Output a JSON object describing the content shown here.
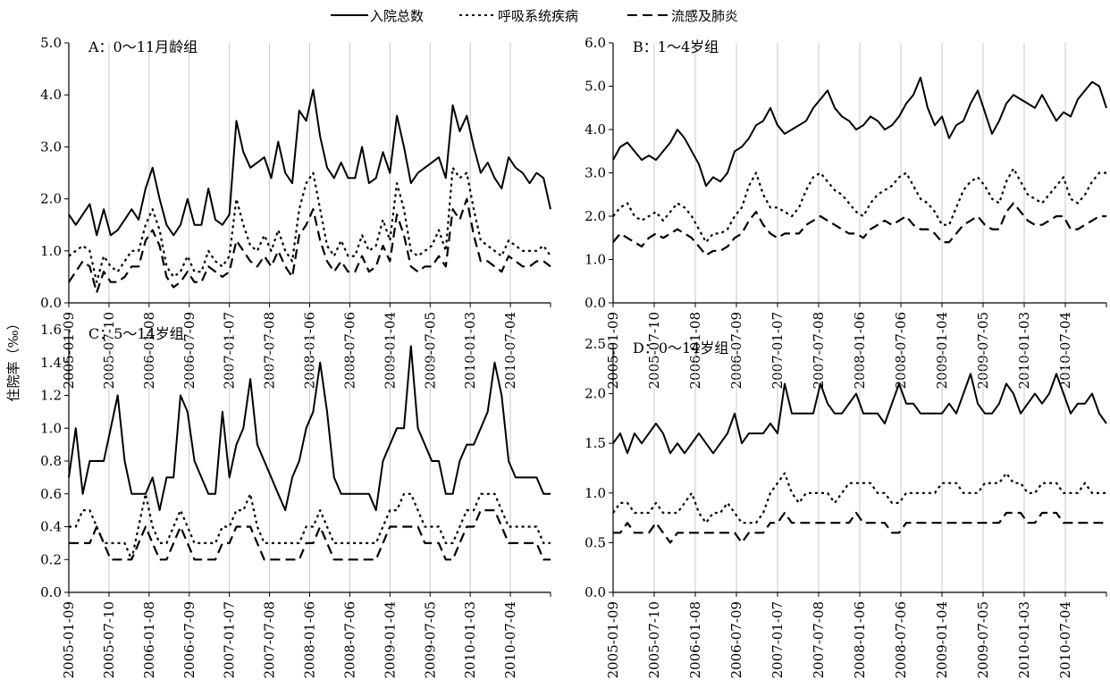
{
  "legend": [
    {
      "name": "入院总数",
      "dash": "solid"
    },
    {
      "name": "呼吸系统疾病",
      "dash": "dot"
    },
    {
      "name": "流感及肺炎",
      "dash": "dash"
    }
  ],
  "ylabel": "住院率（‰）",
  "chart_data": [
    {
      "type": "line",
      "title": "A：0～11月龄组",
      "ylim": [
        0,
        5
      ],
      "yticks": [
        "0.0",
        "1.0",
        "2.0",
        "3.0",
        "4.0",
        "5.0"
      ],
      "xticks": [
        "2005-01-09",
        "2005-07-10",
        "2006-01-08",
        "2006-07-09",
        "2007-01-07",
        "2007-07-08",
        "2008-01-06",
        "2008-07-06",
        "2009-01-04",
        "2009-07-05",
        "2010-01-03",
        "2010-07-04"
      ],
      "series": [
        {
          "name": "入院总数",
          "values": [
            1.7,
            1.5,
            1.7,
            1.9,
            1.3,
            1.8,
            1.3,
            1.4,
            1.6,
            1.8,
            1.6,
            2.2,
            2.6,
            2.0,
            1.5,
            1.3,
            1.5,
            2.0,
            1.5,
            1.5,
            2.2,
            1.6,
            1.5,
            1.7,
            3.5,
            2.9,
            2.6,
            2.7,
            2.8,
            2.4,
            3.1,
            2.5,
            2.3,
            3.7,
            3.5,
            4.1,
            3.2,
            2.6,
            2.4,
            2.7,
            2.4,
            2.4,
            3.0,
            2.3,
            2.4,
            2.9,
            2.5,
            3.6,
            3.0,
            2.3,
            2.5,
            2.6,
            2.7,
            2.8,
            2.4,
            3.8,
            3.3,
            3.6,
            3.0,
            2.5,
            2.7,
            2.4,
            2.2,
            2.8,
            2.6,
            2.5,
            2.3,
            2.5,
            2.4,
            1.8
          ]
        },
        {
          "name": "呼吸系统疾病",
          "values": [
            0.9,
            1.0,
            1.1,
            1.0,
            0.4,
            0.9,
            0.7,
            0.6,
            0.8,
            1.0,
            1.0,
            1.5,
            1.8,
            1.4,
            0.7,
            0.5,
            0.6,
            0.9,
            0.6,
            0.6,
            1.0,
            0.8,
            0.7,
            0.9,
            2.0,
            1.5,
            1.1,
            1.0,
            1.3,
            1.0,
            1.4,
            1.0,
            0.8,
            1.8,
            2.3,
            2.5,
            1.8,
            1.1,
            0.9,
            1.2,
            0.9,
            0.9,
            1.3,
            1.0,
            1.1,
            1.6,
            1.2,
            2.3,
            1.8,
            1.0,
            0.9,
            1.0,
            1.1,
            1.4,
            1.0,
            2.6,
            2.4,
            2.5,
            1.8,
            1.2,
            1.1,
            1.0,
            0.9,
            1.2,
            1.1,
            1.0,
            1.0,
            1.0,
            1.1,
            0.9
          ]
        },
        {
          "name": "流感及肺炎",
          "values": [
            0.4,
            0.6,
            0.8,
            0.7,
            0.2,
            0.6,
            0.4,
            0.4,
            0.5,
            0.7,
            0.7,
            1.2,
            1.4,
            1.1,
            0.5,
            0.3,
            0.4,
            0.6,
            0.4,
            0.4,
            0.7,
            0.6,
            0.5,
            0.6,
            1.2,
            1.0,
            0.8,
            0.7,
            0.9,
            0.7,
            1.0,
            0.7,
            0.5,
            1.3,
            1.5,
            1.8,
            1.2,
            0.8,
            0.6,
            0.8,
            0.6,
            0.6,
            0.9,
            0.6,
            0.7,
            1.1,
            0.8,
            1.7,
            1.3,
            0.7,
            0.6,
            0.7,
            0.7,
            0.9,
            0.7,
            1.8,
            1.6,
            2.0,
            1.3,
            0.8,
            0.8,
            0.7,
            0.6,
            0.9,
            0.8,
            0.7,
            0.7,
            0.8,
            0.8,
            0.7
          ]
        }
      ]
    },
    {
      "type": "line",
      "title": "B：1～4岁组",
      "ylim": [
        0,
        6
      ],
      "yticks": [
        "0.0",
        "1.0",
        "2.0",
        "3.0",
        "4.0",
        "5.0",
        "6.0"
      ],
      "xticks": [
        "2005-01-09",
        "2005-07-10",
        "2006-01-08",
        "2006-07-09",
        "2007-01-07",
        "2007-07-08",
        "2008-01-06",
        "2008-07-06",
        "2009-01-04",
        "2009-07-05",
        "2010-01-03",
        "2010-07-04"
      ],
      "series": [
        {
          "name": "入院总数",
          "values": [
            3.3,
            3.6,
            3.7,
            3.5,
            3.3,
            3.4,
            3.3,
            3.5,
            3.7,
            4.0,
            3.8,
            3.5,
            3.2,
            2.7,
            2.9,
            2.8,
            3.0,
            3.5,
            3.6,
            3.8,
            4.1,
            4.2,
            4.5,
            4.1,
            3.9,
            4.0,
            4.1,
            4.2,
            4.5,
            4.7,
            4.9,
            4.5,
            4.3,
            4.2,
            4.0,
            4.1,
            4.3,
            4.2,
            4.0,
            4.1,
            4.3,
            4.6,
            4.8,
            5.2,
            4.5,
            4.1,
            4.3,
            3.8,
            4.1,
            4.2,
            4.6,
            4.9,
            4.4,
            3.9,
            4.2,
            4.6,
            4.8,
            4.7,
            4.6,
            4.5,
            4.8,
            4.5,
            4.2,
            4.4,
            4.3,
            4.7,
            4.9,
            5.1,
            5.0,
            4.5
          ]
        },
        {
          "name": "呼吸系统疾病",
          "values": [
            2.0,
            2.2,
            2.3,
            2.0,
            1.9,
            2.0,
            2.1,
            1.9,
            2.1,
            2.3,
            2.2,
            2.0,
            1.7,
            1.4,
            1.6,
            1.6,
            1.7,
            2.0,
            2.2,
            2.7,
            3.0,
            2.5,
            2.2,
            2.2,
            2.1,
            2.0,
            2.2,
            2.6,
            2.9,
            3.0,
            2.8,
            2.6,
            2.5,
            2.3,
            2.1,
            2.0,
            2.3,
            2.5,
            2.6,
            2.7,
            2.9,
            3.0,
            2.7,
            2.4,
            2.3,
            2.1,
            1.8,
            1.8,
            2.2,
            2.6,
            2.8,
            2.9,
            2.7,
            2.4,
            2.3,
            2.8,
            3.1,
            2.8,
            2.5,
            2.4,
            2.3,
            2.5,
            2.7,
            2.9,
            2.4,
            2.3,
            2.5,
            2.8,
            3.0,
            3.0
          ]
        },
        {
          "name": "流感及肺炎",
          "values": [
            1.4,
            1.6,
            1.5,
            1.4,
            1.3,
            1.5,
            1.6,
            1.5,
            1.6,
            1.7,
            1.6,
            1.5,
            1.3,
            1.1,
            1.2,
            1.2,
            1.3,
            1.5,
            1.6,
            1.9,
            2.1,
            1.8,
            1.6,
            1.5,
            1.6,
            1.6,
            1.6,
            1.8,
            1.9,
            2.0,
            1.9,
            1.8,
            1.7,
            1.6,
            1.6,
            1.5,
            1.7,
            1.8,
            1.9,
            1.8,
            1.9,
            2.0,
            1.8,
            1.7,
            1.7,
            1.6,
            1.4,
            1.4,
            1.6,
            1.8,
            1.9,
            2.0,
            1.8,
            1.7,
            1.7,
            2.1,
            2.3,
            2.1,
            1.9,
            1.8,
            1.8,
            1.9,
            2.0,
            2.0,
            1.7,
            1.7,
            1.8,
            1.9,
            2.0,
            2.0
          ]
        }
      ]
    },
    {
      "type": "line",
      "title": "C：5～14岁组",
      "ylim": [
        0,
        1.6
      ],
      "yticks": [
        "0.0",
        "0.2",
        "0.4",
        "0.6",
        "0.8",
        "1.0",
        "1.2",
        "1.4",
        "1.6"
      ],
      "xticks": [
        "2005-01-09",
        "2005-07-10",
        "2006-01-08",
        "2006-07-09",
        "2007-01-07",
        "2007-07-08",
        "2008-01-06",
        "2008-07-06",
        "2009-01-04",
        "2009-07-05",
        "2010-01-03",
        "2010-07-04"
      ],
      "series": [
        {
          "name": "入院总数",
          "values": [
            0.7,
            1.0,
            0.6,
            0.8,
            0.8,
            0.8,
            1.0,
            1.2,
            0.8,
            0.6,
            0.6,
            0.6,
            0.7,
            0.5,
            0.7,
            0.7,
            1.2,
            1.1,
            0.8,
            0.7,
            0.6,
            0.6,
            1.1,
            0.7,
            0.9,
            1.0,
            1.3,
            0.9,
            0.8,
            0.7,
            0.6,
            0.5,
            0.7,
            0.8,
            1.0,
            1.1,
            1.4,
            1.1,
            0.7,
            0.6,
            0.6,
            0.6,
            0.6,
            0.6,
            0.5,
            0.8,
            0.9,
            1.0,
            1.0,
            1.5,
            1.0,
            0.9,
            0.8,
            0.8,
            0.6,
            0.6,
            0.8,
            0.9,
            0.9,
            1.0,
            1.1,
            1.4,
            1.2,
            0.8,
            0.7,
            0.7,
            0.7,
            0.7,
            0.6,
            0.6
          ]
        },
        {
          "name": "呼吸系统疾病",
          "values": [
            0.4,
            0.4,
            0.5,
            0.5,
            0.4,
            0.3,
            0.3,
            0.3,
            0.3,
            0.2,
            0.4,
            0.6,
            0.4,
            0.3,
            0.3,
            0.4,
            0.5,
            0.4,
            0.3,
            0.3,
            0.3,
            0.3,
            0.4,
            0.4,
            0.5,
            0.5,
            0.6,
            0.4,
            0.3,
            0.3,
            0.3,
            0.3,
            0.3,
            0.3,
            0.4,
            0.4,
            0.5,
            0.4,
            0.3,
            0.3,
            0.3,
            0.3,
            0.3,
            0.3,
            0.3,
            0.4,
            0.5,
            0.5,
            0.6,
            0.6,
            0.5,
            0.4,
            0.4,
            0.4,
            0.3,
            0.3,
            0.4,
            0.5,
            0.5,
            0.6,
            0.6,
            0.6,
            0.5,
            0.4,
            0.4,
            0.4,
            0.4,
            0.4,
            0.3,
            0.3
          ]
        },
        {
          "name": "流感及肺炎",
          "values": [
            0.3,
            0.3,
            0.3,
            0.3,
            0.4,
            0.3,
            0.2,
            0.2,
            0.2,
            0.2,
            0.3,
            0.4,
            0.3,
            0.2,
            0.2,
            0.3,
            0.4,
            0.3,
            0.2,
            0.2,
            0.2,
            0.2,
            0.3,
            0.3,
            0.4,
            0.4,
            0.4,
            0.3,
            0.2,
            0.2,
            0.2,
            0.2,
            0.2,
            0.2,
            0.3,
            0.3,
            0.4,
            0.3,
            0.2,
            0.2,
            0.2,
            0.2,
            0.2,
            0.2,
            0.2,
            0.3,
            0.4,
            0.4,
            0.4,
            0.4,
            0.4,
            0.3,
            0.3,
            0.3,
            0.2,
            0.2,
            0.3,
            0.4,
            0.4,
            0.5,
            0.5,
            0.5,
            0.4,
            0.3,
            0.3,
            0.3,
            0.3,
            0.3,
            0.2,
            0.2
          ]
        }
      ]
    },
    {
      "type": "line",
      "title": "D：0～14岁组",
      "ylim": [
        0,
        2.5
      ],
      "yticks": [
        "0.0",
        "0.5",
        "1.0",
        "1.5",
        "2.0",
        "2.5"
      ],
      "xticks": [
        "2005-01-09",
        "2005-07-10",
        "2006-01-08",
        "2006-07-09",
        "2007-01-07",
        "2007-07-08",
        "2008-01-06",
        "2008-07-06",
        "2009-01-04",
        "2009-07-05",
        "2010-01-03",
        "2010-07-04"
      ],
      "series": [
        {
          "name": "入院总数",
          "values": [
            1.5,
            1.6,
            1.4,
            1.6,
            1.5,
            1.6,
            1.7,
            1.6,
            1.4,
            1.5,
            1.4,
            1.5,
            1.6,
            1.5,
            1.4,
            1.5,
            1.6,
            1.8,
            1.5,
            1.6,
            1.6,
            1.6,
            1.7,
            1.6,
            2.1,
            1.8,
            1.8,
            1.8,
            1.8,
            2.1,
            1.9,
            1.8,
            1.8,
            1.9,
            2.0,
            1.8,
            1.8,
            1.8,
            1.7,
            1.9,
            2.1,
            1.9,
            1.9,
            1.8,
            1.8,
            1.8,
            1.8,
            1.9,
            1.8,
            2.0,
            2.2,
            1.9,
            1.8,
            1.8,
            1.9,
            2.1,
            2.0,
            1.8,
            1.9,
            2.0,
            1.9,
            2.0,
            2.2,
            2.0,
            1.8,
            1.9,
            1.9,
            2.0,
            1.8,
            1.7
          ]
        },
        {
          "name": "呼吸系统疾病",
          "values": [
            0.8,
            0.9,
            0.9,
            0.8,
            0.8,
            0.8,
            0.9,
            0.8,
            0.8,
            0.8,
            0.9,
            1.0,
            0.8,
            0.7,
            0.8,
            0.8,
            0.9,
            0.8,
            0.7,
            0.7,
            0.7,
            0.8,
            1.0,
            1.1,
            1.2,
            1.0,
            0.9,
            1.0,
            1.0,
            1.0,
            1.0,
            0.9,
            1.0,
            1.1,
            1.1,
            1.1,
            1.1,
            1.0,
            1.0,
            0.9,
            0.9,
            1.0,
            1.0,
            1.0,
            1.0,
            1.0,
            1.1,
            1.1,
            1.1,
            1.0,
            1.0,
            1.0,
            1.1,
            1.1,
            1.1,
            1.2,
            1.1,
            1.1,
            1.0,
            1.0,
            1.1,
            1.1,
            1.1,
            1.0,
            1.0,
            1.0,
            1.1,
            1.0,
            1.0,
            1.0
          ]
        },
        {
          "name": "流感及肺炎",
          "values": [
            0.6,
            0.6,
            0.7,
            0.6,
            0.6,
            0.6,
            0.7,
            0.6,
            0.5,
            0.6,
            0.6,
            0.6,
            0.6,
            0.6,
            0.6,
            0.6,
            0.6,
            0.6,
            0.5,
            0.6,
            0.6,
            0.6,
            0.7,
            0.7,
            0.8,
            0.7,
            0.7,
            0.7,
            0.7,
            0.7,
            0.7,
            0.7,
            0.7,
            0.7,
            0.8,
            0.7,
            0.7,
            0.7,
            0.7,
            0.6,
            0.6,
            0.7,
            0.7,
            0.7,
            0.7,
            0.7,
            0.7,
            0.7,
            0.7,
            0.7,
            0.7,
            0.7,
            0.7,
            0.7,
            0.7,
            0.8,
            0.8,
            0.8,
            0.7,
            0.7,
            0.8,
            0.8,
            0.8,
            0.7,
            0.7,
            0.7,
            0.7,
            0.7,
            0.7,
            0.7
          ]
        }
      ]
    }
  ]
}
